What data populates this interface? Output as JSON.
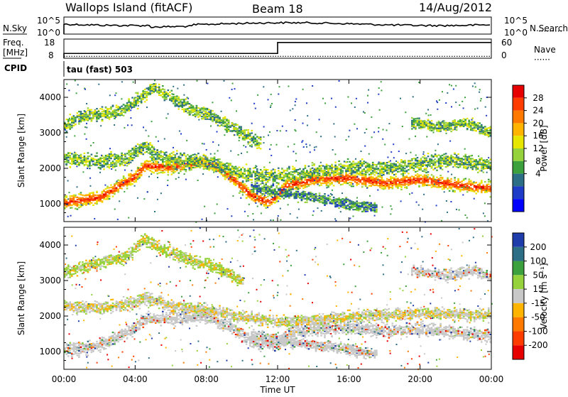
{
  "header": {
    "station": "Wallops Island (fitACF)",
    "beam": "Beam 18",
    "date": "14/Aug/2012"
  },
  "noise_panel": {
    "left_label": "N.Sky",
    "right_label": "N.Search",
    "left_ticks": [
      "10^5",
      "10^0"
    ],
    "right_ticks": [
      "10^5",
      "10^0"
    ]
  },
  "freq_panel": {
    "left_label_line1": "Freq.",
    "left_label_line2": "[MHz]",
    "right_label": "Nave",
    "left_ticks": [
      "18",
      "8"
    ],
    "right_ticks": [
      "60",
      "0"
    ],
    "freq_step": {
      "before_hour": 12,
      "after_hour": 12,
      "low_level": 10.5,
      "high_level": 16.2
    },
    "nave_level": 6
  },
  "cpid": {
    "label": "CPID",
    "program": "tau (fast) 503"
  },
  "chart_data": [
    {
      "type": "heatmap",
      "name": "power",
      "xlabel": "Time UT",
      "ylabel": "Slant Range [km]",
      "xlim": [
        0,
        24
      ],
      "ylim": [
        500,
        4500
      ],
      "x_ticks": [
        "00:00",
        "04:00",
        "08:00",
        "12:00",
        "16:00",
        "20:00",
        "00:00"
      ],
      "y_ticks": [
        1000,
        2000,
        3000,
        4000
      ],
      "colorbar": {
        "label": "Power [dB]",
        "levels": [
          "28",
          "24",
          "20",
          "16",
          "12",
          "8",
          "4"
        ],
        "colors": [
          "#e60000",
          "#ff3c00",
          "#ff7800",
          "#ffb400",
          "#e6e600",
          "#96d23c",
          "#3ca03c",
          "#2d6e87",
          "#1e3cc8",
          "#0000ff"
        ]
      },
      "bands": [
        {
          "points": [
            [
              0,
              1050
            ],
            [
              2,
              1200
            ],
            [
              4,
              1800
            ],
            [
              4.5,
              2100
            ],
            [
              6,
              2050
            ],
            [
              7.5,
              2200
            ],
            [
              8.5,
              2100
            ],
            [
              9.5,
              1700
            ],
            [
              10.5,
              1250
            ],
            [
              11.5,
              1050
            ],
            [
              12,
              1300
            ],
            [
              12.5,
              1550
            ],
            [
              14,
              1700
            ],
            [
              16,
              1750
            ],
            [
              18,
              1600
            ],
            [
              20,
              1700
            ],
            [
              22,
              1550
            ],
            [
              24,
              1450
            ]
          ],
          "width": 260,
          "level": "high"
        },
        {
          "points": [
            [
              0,
              2300
            ],
            [
              2,
              2200
            ],
            [
              3.5,
              2300
            ],
            [
              4.5,
              2650
            ],
            [
              5.5,
              2300
            ],
            [
              7,
              2200
            ],
            [
              8,
              2200
            ],
            [
              9,
              2050
            ],
            [
              10,
              1850
            ],
            [
              12,
              1800
            ],
            [
              14,
              1900
            ],
            [
              16,
              2050
            ],
            [
              18,
              2000
            ],
            [
              20,
              2150
            ],
            [
              22,
              2250
            ],
            [
              24,
              2100
            ]
          ],
          "width": 300,
          "level": "mid"
        },
        {
          "points": [
            [
              0,
              3200
            ],
            [
              1,
              3500
            ],
            [
              3,
              3600
            ],
            [
              4,
              3900
            ],
            [
              5,
              4300
            ],
            [
              6,
              4000
            ],
            [
              7,
              3700
            ],
            [
              8,
              3550
            ],
            [
              9,
              3300
            ],
            [
              10,
              3000
            ],
            [
              11,
              2700
            ]
          ],
          "width": 260,
          "level": "mid"
        },
        {
          "points": [
            [
              19.5,
              3300
            ],
            [
              21,
              3200
            ],
            [
              22.5,
              3300
            ],
            [
              23.5,
              3100
            ],
            [
              24,
              3000
            ]
          ],
          "width": 220,
          "level": "mid"
        },
        {
          "points": [
            [
              10.5,
              1500
            ],
            [
              12,
              1350
            ],
            [
              14,
              1200
            ],
            [
              16,
              1000
            ],
            [
              17.5,
              900
            ]
          ],
          "width": 220,
          "level": "low"
        }
      ]
    },
    {
      "type": "heatmap",
      "name": "velocity",
      "xlabel": "Time UT",
      "ylabel": "Slant Range [km]",
      "xlim": [
        0,
        24
      ],
      "ylim": [
        500,
        4500
      ],
      "x_ticks": [
        "00:00",
        "04:00",
        "08:00",
        "12:00",
        "16:00",
        "20:00",
        "00:00"
      ],
      "y_ticks": [
        1000,
        2000,
        3000,
        4000
      ],
      "colorbar": {
        "label": "Velocity [m s⁻¹]",
        "levels": [
          "200",
          "100",
          "50",
          "15",
          "-15",
          "-50",
          "-100",
          "-200"
        ],
        "colors": [
          "#1e3caa",
          "#2d6e87",
          "#3ca03c",
          "#96d23c",
          "#c8c8c8",
          "#ffb400",
          "#ff7800",
          "#ff3c00",
          "#e60000"
        ]
      },
      "bands": [
        {
          "points": [
            [
              0,
              1050
            ],
            [
              2,
              1200
            ],
            [
              4,
              1700
            ],
            [
              4.5,
              1950
            ],
            [
              6,
              1950
            ],
            [
              8,
              2000
            ],
            [
              9.5,
              1650
            ],
            [
              10.5,
              1300
            ],
            [
              12,
              1200
            ],
            [
              12.5,
              1550
            ],
            [
              14,
              1650
            ],
            [
              16,
              1700
            ],
            [
              18,
              1600
            ],
            [
              20,
              1650
            ],
            [
              22,
              1550
            ],
            [
              24,
              1450
            ]
          ],
          "width": 260,
          "level": "gray"
        },
        {
          "points": [
            [
              0,
              2300
            ],
            [
              2,
              2250
            ],
            [
              4,
              2400
            ],
            [
              4.5,
              2550
            ],
            [
              6,
              2300
            ],
            [
              8,
              2200
            ],
            [
              10,
              2000
            ],
            [
              12,
              1850
            ],
            [
              14,
              1900
            ],
            [
              16,
              2000
            ],
            [
              20,
              2100
            ],
            [
              24,
              2050
            ]
          ],
          "width": 240,
          "level": "mixed"
        },
        {
          "points": [
            [
              0,
              3250
            ],
            [
              1.5,
              3450
            ],
            [
              3.5,
              3700
            ],
            [
              4.5,
              4200
            ],
            [
              5.5,
              3900
            ],
            [
              7,
              3600
            ],
            [
              8.5,
              3400
            ],
            [
              10,
              3000
            ]
          ],
          "width": 240,
          "level": "green"
        },
        {
          "points": [
            [
              19.5,
              3300
            ],
            [
              21.5,
              3150
            ],
            [
              23,
              3300
            ],
            [
              24,
              3100
            ]
          ],
          "width": 220,
          "level": "gray"
        },
        {
          "points": [
            [
              10.5,
              1500
            ],
            [
              12.5,
              1300
            ],
            [
              15,
              1150
            ],
            [
              17.5,
              950
            ]
          ],
          "width": 200,
          "level": "gray"
        }
      ]
    }
  ]
}
